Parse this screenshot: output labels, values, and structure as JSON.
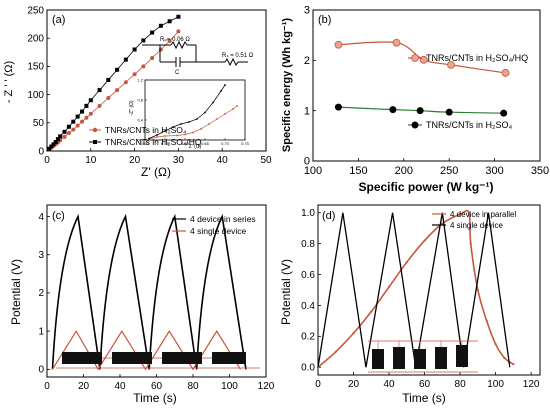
{
  "chart_data": [
    {
      "type": "scatter",
      "panel_label": "(a)",
      "xlabel": "Z' (Ω)",
      "ylabel": "- Z ' ' (Ω)",
      "xlim": [
        0,
        50
      ],
      "ylim": [
        0,
        250
      ],
      "xticks": [
        "0",
        "10",
        "20",
        "30",
        "40",
        "50"
      ],
      "yticks": [
        "0",
        "50",
        "100",
        "150",
        "200",
        "250"
      ],
      "legend_position": "bottom-right",
      "circuit_labels": {
        "rp": "Rₚ= 0.06 Ω",
        "c": "C",
        "rs": "Rₛ = 0.51 Ω"
      },
      "series": [
        {
          "name": "TNRs/CNTs in H₂SO₄",
          "color": "#c8553d",
          "marker": "circle",
          "x": [
            0.5,
            1,
            1.5,
            2,
            2.5,
            3,
            4,
            5,
            6,
            7,
            8,
            9,
            10,
            12,
            14,
            16,
            18,
            20,
            22,
            24,
            26,
            28,
            30
          ],
          "y": [
            3,
            6,
            9,
            12,
            15,
            19,
            25,
            32,
            38,
            45,
            52,
            59,
            66,
            80,
            94,
            108,
            122,
            136,
            150,
            165,
            180,
            195,
            212
          ]
        },
        {
          "name": "TNRs/CNTs in H₂SO₄/HQ",
          "color": "#000000",
          "marker": "square",
          "x": [
            0.5,
            1,
            1.5,
            2,
            2.5,
            3,
            4,
            5,
            6,
            7,
            8,
            9,
            10,
            12,
            14,
            16,
            18,
            20,
            22,
            24,
            26,
            28,
            30
          ],
          "y": [
            4,
            8,
            12,
            16,
            21,
            26,
            34,
            43,
            52,
            61,
            70,
            80,
            90,
            108,
            126,
            144,
            162,
            180,
            196,
            210,
            222,
            230,
            238
          ]
        }
      ],
      "inset": {
        "xlabel": "Z' (Ω)",
        "ylabel": "-Z'' (Ω)",
        "xlim": [
          0.5,
          0.75
        ],
        "ylim": [
          0,
          1.2
        ],
        "xticks": [
          "0.50",
          "0.55",
          "0.60",
          "0.65",
          "0.70",
          "0.75"
        ],
        "yticks": [
          "0.0",
          "0.4",
          "0.8",
          "1.2"
        ],
        "series": [
          {
            "color": "#c8553d",
            "x": [
              0.51,
              0.53,
              0.55,
              0.58,
              0.6,
              0.62,
              0.64,
              0.66,
              0.68,
              0.7,
              0.72,
              0.73
            ],
            "y": [
              0.02,
              0.06,
              0.08,
              0.09,
              0.11,
              0.15,
              0.22,
              0.32,
              0.42,
              0.52,
              0.62,
              0.68
            ]
          },
          {
            "color": "#000000",
            "x": [
              0.51,
              0.53,
              0.55,
              0.57,
              0.59,
              0.61,
              0.63,
              0.65,
              0.67,
              0.69,
              0.7
            ],
            "y": [
              0.03,
              0.1,
              0.18,
              0.26,
              0.32,
              0.36,
              0.42,
              0.55,
              0.75,
              0.98,
              1.1
            ]
          }
        ]
      }
    },
    {
      "type": "line",
      "panel_label": "(b)",
      "xlabel": "Specific power (W kg⁻¹)",
      "ylabel": "Specific energy (Wh kg⁻¹)",
      "xlim": [
        100,
        350
      ],
      "ylim": [
        0,
        3
      ],
      "xticks": [
        "100",
        "150",
        "200",
        "250",
        "300",
        "350"
      ],
      "yticks": [
        "0",
        "1",
        "2",
        "3"
      ],
      "series": [
        {
          "name": "TNRs/CNTs in H₂SO₄/HQ",
          "color": "#c8553d",
          "marker": "circle",
          "x": [
            128,
            192,
            222,
            252,
            312
          ],
          "y": [
            2.31,
            2.35,
            2.01,
            1.91,
            1.75
          ]
        },
        {
          "name": "TNRs/CNTs in H₂SO₄",
          "color": "#000000",
          "marker": "circle",
          "line_color": "#2e7d32",
          "x": [
            128,
            188,
            218,
            250,
            310
          ],
          "y": [
            1.07,
            1.02,
            1.0,
            0.97,
            0.95
          ]
        }
      ]
    },
    {
      "type": "line",
      "panel_label": "(c)",
      "xlabel": "Time (s)",
      "ylabel": "Potential (V)",
      "xlim": [
        0,
        120
      ],
      "ylim": [
        -0.2,
        4.3
      ],
      "xticks": [
        "0",
        "20",
        "40",
        "60",
        "80",
        "100",
        "120"
      ],
      "yticks": [
        "0",
        "1",
        "2",
        "3",
        "4"
      ],
      "legend_position": "top-right",
      "series": [
        {
          "name": "4 device in series",
          "color": "#000000",
          "x": [
            3,
            17,
            29,
            43,
            56,
            70,
            82,
            96,
            109
          ],
          "y": [
            0,
            4,
            0,
            4,
            0,
            4,
            0,
            4,
            0
          ]
        },
        {
          "name": "4 single device",
          "color": "#c8553d",
          "x": [
            3,
            16,
            28,
            41,
            54,
            67,
            80,
            93,
            106
          ],
          "y": [
            0,
            1,
            0,
            1,
            0,
            1,
            0,
            1,
            0
          ]
        }
      ]
    },
    {
      "type": "line",
      "panel_label": "(d)",
      "xlabel": "Time (s)",
      "ylabel": "Potential (V)",
      "xlim": [
        0,
        125
      ],
      "ylim": [
        -0.05,
        1.05
      ],
      "xticks": [
        "0",
        "20",
        "40",
        "60",
        "80",
        "100",
        "120"
      ],
      "yticks": [
        "0.0",
        "0.2",
        "0.4",
        "0.6",
        "0.8",
        "1.0"
      ],
      "legend_position": "top-right",
      "series": [
        {
          "name": "4 device in parallel",
          "color": "#c8553d",
          "x": [
            0,
            10,
            20,
            30,
            40,
            50,
            60,
            70,
            80,
            85,
            86,
            90,
            95,
            100,
            105,
            110
          ],
          "y": [
            0,
            0.1,
            0.22,
            0.36,
            0.52,
            0.68,
            0.82,
            0.93,
            0.99,
            1.0,
            0.8,
            0.5,
            0.3,
            0.15,
            0.06,
            0.02
          ]
        },
        {
          "name": "4 single device",
          "color": "#000000",
          "x": [
            0,
            14,
            27,
            42,
            55,
            70,
            82,
            96,
            108
          ],
          "y": [
            0,
            1,
            0,
            1,
            0,
            1,
            0,
            1,
            0
          ]
        }
      ]
    }
  ]
}
